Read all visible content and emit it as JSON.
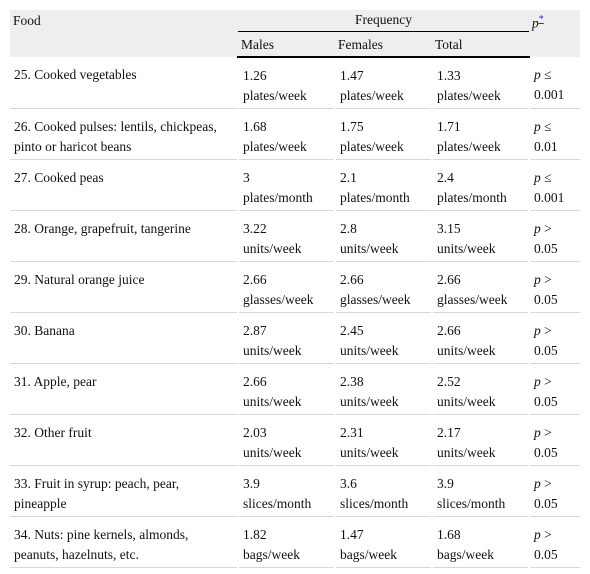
{
  "table": {
    "header": {
      "food": "Food",
      "frequency": "Frequency",
      "p": {
        "symbol": "p",
        "note": "*"
      },
      "sub": [
        "Males",
        "Females",
        "Total"
      ]
    },
    "rows": [
      [
        "25. Cooked vegetables",
        {
          "value": "1.26",
          "unit": "plates/week"
        },
        {
          "value": "1.47",
          "unit": "plates/week"
        },
        {
          "value": "1.33",
          "unit": "plates/week"
        },
        {
          "symbol": "p",
          "text": "≤ 0.001"
        }
      ],
      [
        "26. Cooked pulses: lentils, chickpeas, pinto or haricot beans",
        {
          "value": "1.68",
          "unit": "plates/week"
        },
        {
          "value": "1.75",
          "unit": "plates/week"
        },
        {
          "value": "1.71",
          "unit": "plates/week"
        },
        {
          "symbol": "p",
          "text": "≤ 0.01"
        }
      ],
      [
        "27. Cooked peas",
        {
          "value": "3",
          "unit": "plates/month"
        },
        {
          "value": "2.1",
          "unit": "plates/month"
        },
        {
          "value": "2.4",
          "unit": "plates/month"
        },
        {
          "symbol": "p",
          "text": "≤ 0.001"
        }
      ],
      [
        "28. Orange, grapefruit, tangerine",
        {
          "value": "3.22",
          "unit": "units/week"
        },
        {
          "value": "2.8",
          "unit": "units/week"
        },
        {
          "value": "3.15",
          "unit": "units/week"
        },
        {
          "symbol": "p",
          "text": "> 0.05"
        }
      ],
      [
        "29. Natural orange juice",
        {
          "value": "2.66",
          "unit": "glasses/week"
        },
        {
          "value": "2.66",
          "unit": "glasses/week"
        },
        {
          "value": "2.66",
          "unit": "glasses/week"
        },
        {
          "symbol": "p",
          "text": "> 0.05"
        }
      ],
      [
        "30. Banana",
        {
          "value": "2.87",
          "unit": "units/week"
        },
        {
          "value": "2.45",
          "unit": "units/week"
        },
        {
          "value": "2.66",
          "unit": "units/week"
        },
        {
          "symbol": "p",
          "text": "> 0.05"
        }
      ],
      [
        "31. Apple, pear",
        {
          "value": "2.66",
          "unit": "units/week"
        },
        {
          "value": "2.38",
          "unit": "units/week"
        },
        {
          "value": "2.52",
          "unit": "units/week"
        },
        {
          "symbol": "p",
          "text": "> 0.05"
        }
      ],
      [
        "32. Other fruit",
        {
          "value": "2.03",
          "unit": "units/week"
        },
        {
          "value": "2.31",
          "unit": "units/week"
        },
        {
          "value": "2.17",
          "unit": "units/week"
        },
        {
          "symbol": "p",
          "text": "> 0.05"
        }
      ],
      [
        "33. Fruit in syrup: peach, pear, pineapple",
        {
          "value": "3.9",
          "unit": "slices/month"
        },
        {
          "value": "3.6",
          "unit": "slices/month"
        },
        {
          "value": "3.9",
          "unit": "slices/month"
        },
        {
          "symbol": "p",
          "text": "> 0.05"
        }
      ],
      [
        "34. Nuts: pine kernels, almonds, peanuts, hazelnuts, etc.",
        {
          "value": "1.82",
          "unit": "bags/week"
        },
        {
          "value": "1.47",
          "unit": "bags/week"
        },
        {
          "value": "1.68",
          "unit": "bags/week"
        },
        {
          "symbol": "p",
          "text": "> 0.05"
        }
      ]
    ]
  }
}
